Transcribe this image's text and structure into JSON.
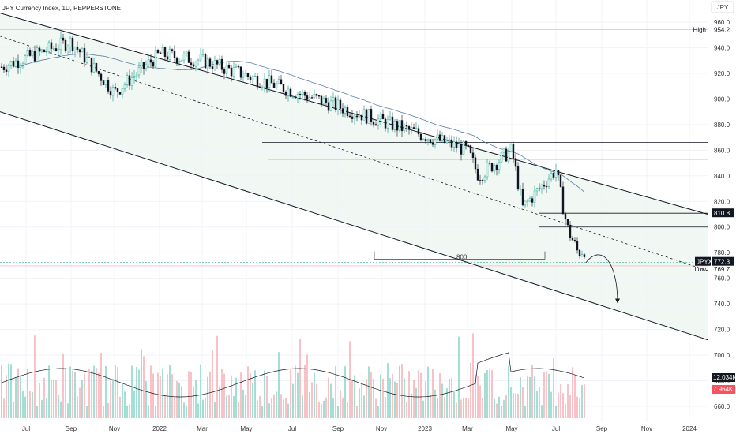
{
  "header": {
    "title": "JPY Currency Index, 1D, PEPPERSTONE",
    "currency_badge": "JPY"
  },
  "chart_data": {
    "type": "candlestick",
    "title": "JPY Currency Index, 1D, PEPPERSTONE",
    "ylim": [
      650,
      962
    ],
    "y_ticks": [
      960,
      940,
      920,
      900,
      880,
      860,
      840,
      820,
      800,
      780,
      760,
      740,
      720,
      700,
      680,
      660
    ],
    "x_ticks": [
      "Jul",
      "Sep",
      "Nov",
      "2022",
      "Mar",
      "May",
      "Jul",
      "Sep",
      "Nov",
      "2023",
      "Mar",
      "May",
      "Jul",
      "Sep",
      "Nov",
      "2024"
    ],
    "price_path": [
      {
        "t": "Jul",
        "v": 925
      },
      {
        "t": "Sep",
        "v": 945
      },
      {
        "t": "Nov",
        "v": 905
      },
      {
        "t": "2022",
        "v": 935
      },
      {
        "t": "Mar",
        "v": 930
      },
      {
        "t": "Mar",
        "v": 860
      },
      {
        "t": "May",
        "v": 840
      },
      {
        "t": "May",
        "v": 860
      },
      {
        "t": "Jul",
        "v": 815
      },
      {
        "t": "Jul",
        "v": 845
      },
      {
        "t": "Sep",
        "v": 800
      },
      {
        "t": "Nov",
        "v": 780
      },
      {
        "t": "Nov",
        "v": 805
      },
      {
        "t": "2023",
        "v": 840
      },
      {
        "t": "2023",
        "v": 860
      },
      {
        "t": "Mar",
        "v": 825
      },
      {
        "t": "Mar",
        "v": 860
      },
      {
        "t": "May",
        "v": 815
      },
      {
        "t": "Jul",
        "v": 772
      },
      {
        "t": "Jul",
        "v": 800
      },
      {
        "t": "Sep",
        "v": 772.3
      }
    ],
    "moving_average": {
      "start_v": 945,
      "end_v": 812
    },
    "levels": [
      {
        "label": "High",
        "value": "954.2",
        "v": 954.2
      },
      {
        "label": "JPYX",
        "value": "772.3",
        "v": 772.3
      },
      {
        "label": "Low",
        "value": "769.7",
        "v": 769.7
      },
      {
        "label": "",
        "value": "810.8",
        "v": 810.8
      }
    ],
    "horizontal_lines": [
      866,
      853,
      810.8,
      800,
      775,
      769.7
    ],
    "channel_lines": [
      {
        "from": {
          "t": "Jul",
          "v": 967
        },
        "to": {
          "t": "2024",
          "v": 810
        }
      },
      {
        "from": {
          "t": "Jul",
          "v": 949
        },
        "to": {
          "t": "2024",
          "v": 766
        }
      },
      {
        "from": {
          "t": "Jul",
          "v": 890
        },
        "to": {
          "t": "2024",
          "v": 712
        }
      }
    ],
    "annotations": [
      {
        "text": "800",
        "v": 776
      }
    ],
    "projection_target": 741,
    "volume": {
      "label_1": "12.034K",
      "label_2": "7.964K",
      "ma_label_color": "#131722",
      "vol_label_color": "#f7525f"
    },
    "colors": {
      "up": "#089981",
      "down": "#131722",
      "accent": "#2962ff",
      "vol_up": "#7fd0c1",
      "vol_down": "#f7a8ae"
    }
  }
}
